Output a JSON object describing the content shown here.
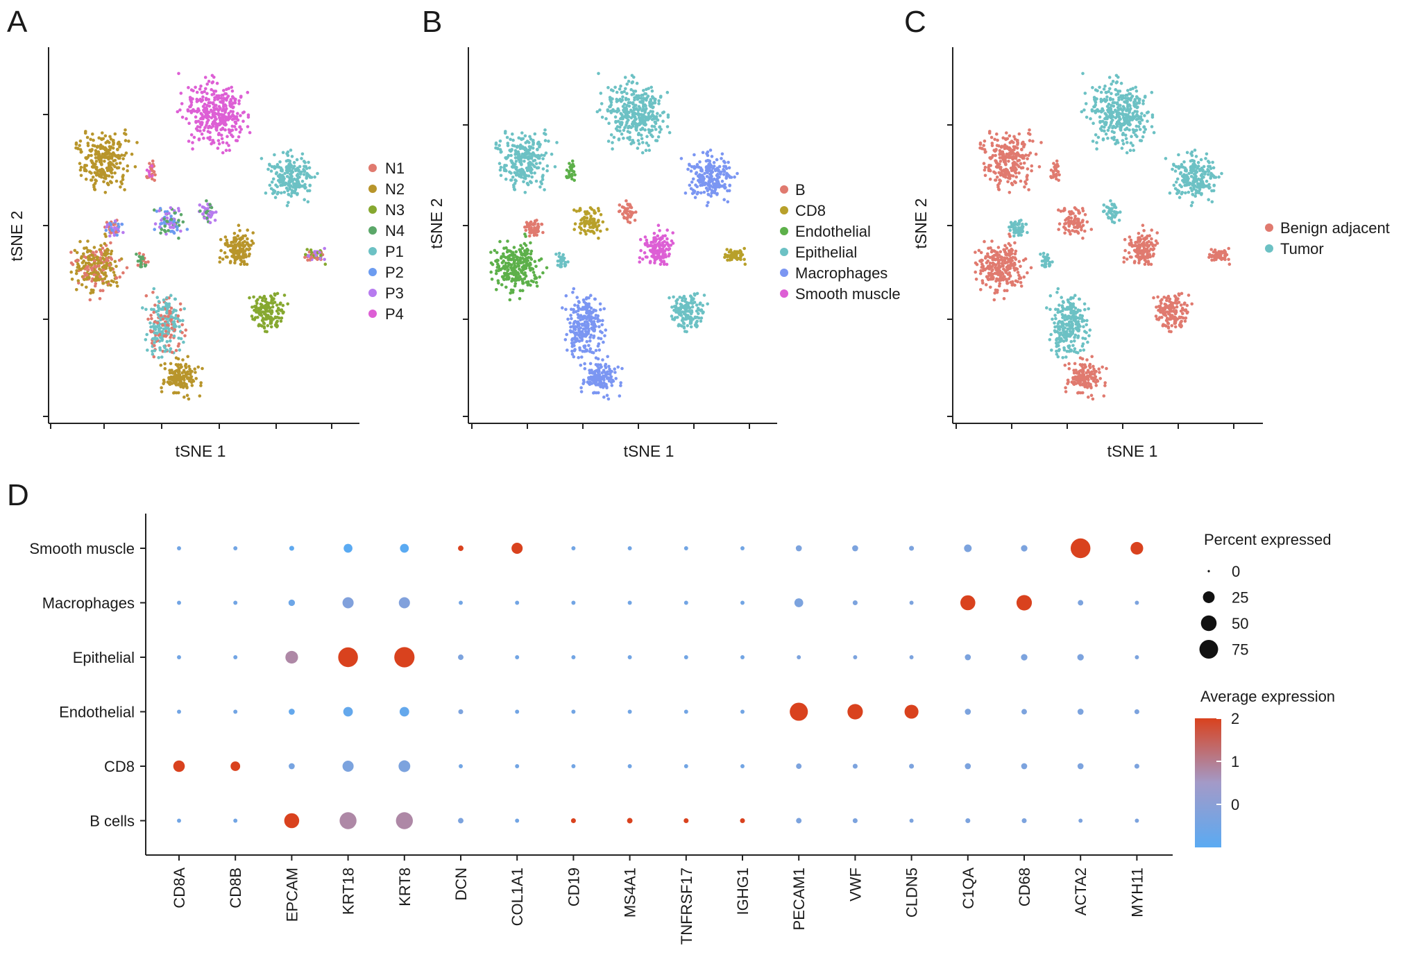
{
  "chart_data": [
    {
      "panel": "A",
      "type": "scatter",
      "xlabel": "tSNE 1",
      "ylabel": "tSNE 2",
      "legend": [
        "N1",
        "N2",
        "N3",
        "N4",
        "P1",
        "P2",
        "P3",
        "P4"
      ],
      "colors": [
        "#e07a6f",
        "#b8952b",
        "#86a830",
        "#5ba769",
        "#6cc1c4",
        "#6c9cf0",
        "#b77bef",
        "#dd5fd5"
      ]
    },
    {
      "panel": "B",
      "type": "scatter",
      "xlabel": "tSNE 1",
      "ylabel": "tSNE 2",
      "legend": [
        "B",
        "CD8",
        "Endothelial",
        "Epithelial",
        "Macrophages",
        "Smooth muscle"
      ],
      "colors": [
        "#e07a6f",
        "#b8a02a",
        "#5db04a",
        "#6cc1c4",
        "#7b96f2",
        "#dd5fd5"
      ]
    },
    {
      "panel": "C",
      "type": "scatter",
      "xlabel": "tSNE 1",
      "ylabel": "tSNE 2",
      "legend": [
        "Benign adjacent",
        "Tumor"
      ],
      "colors": [
        "#e07a6f",
        "#6cc1c4"
      ]
    },
    {
      "panel": "D",
      "type": "dotplot",
      "genes": [
        "CD8A",
        "CD8B",
        "EPCAM",
        "KRT18",
        "KRT8",
        "DCN",
        "COL1A1",
        "CD19",
        "MS4A1",
        "TNFRSF17",
        "IGHG1",
        "PECAM1",
        "VWF",
        "CLDN5",
        "C1QA",
        "CD68",
        "ACTA2",
        "MYH11"
      ],
      "cell_types": [
        "Smooth muscle",
        "Macrophages",
        "Epithelial",
        "Endothelial",
        "CD8",
        "B cells"
      ],
      "percent_expressed": [
        [
          1,
          1,
          2,
          12,
          12,
          3,
          22,
          1,
          1,
          1,
          1,
          4,
          4,
          2,
          8,
          5,
          85,
          30
        ],
        [
          1,
          1,
          5,
          22,
          22,
          1,
          1,
          1,
          1,
          1,
          1,
          12,
          2,
          1,
          45,
          48,
          3,
          1
        ],
        [
          1,
          1,
          30,
          85,
          90,
          3,
          1,
          1,
          1,
          1,
          1,
          1,
          1,
          1,
          4,
          5,
          5,
          1
        ],
        [
          1,
          1,
          4,
          15,
          15,
          2,
          1,
          1,
          1,
          1,
          1,
          70,
          48,
          38,
          4,
          3,
          4,
          2
        ],
        [
          24,
          15,
          4,
          22,
          25,
          1,
          1,
          1,
          1,
          1,
          1,
          3,
          2,
          2,
          4,
          4,
          4,
          2
        ],
        [
          1,
          1,
          45,
          60,
          60,
          3,
          1,
          2,
          3,
          2,
          2,
          3,
          2,
          1,
          2,
          2,
          1,
          1
        ]
      ],
      "average_expression": [
        [
          -0.5,
          -0.5,
          -0.9,
          -1.0,
          -1.0,
          2.0,
          2.0,
          -0.5,
          -0.5,
          -0.5,
          -0.5,
          -0.3,
          -0.3,
          -0.3,
          -0.3,
          -0.3,
          2.0,
          2.0
        ],
        [
          -0.5,
          -0.5,
          -0.6,
          -0.2,
          -0.2,
          -0.5,
          -0.5,
          -0.5,
          -0.5,
          -0.5,
          -0.5,
          -0.3,
          -0.3,
          -0.3,
          2.0,
          2.0,
          -0.3,
          -0.3
        ],
        [
          -0.5,
          -0.5,
          0.8,
          2.0,
          2.0,
          -0.3,
          -0.5,
          -0.5,
          -0.5,
          -0.5,
          -0.5,
          -0.3,
          -0.3,
          -0.3,
          -0.3,
          -0.3,
          -0.3,
          -0.3
        ],
        [
          -0.5,
          -0.5,
          -0.8,
          -0.8,
          -0.8,
          -0.3,
          -0.5,
          -0.5,
          -0.5,
          -0.5,
          -0.5,
          2.0,
          2.0,
          2.0,
          -0.3,
          -0.3,
          -0.3,
          -0.3
        ],
        [
          2.0,
          2.0,
          -0.4,
          -0.3,
          -0.3,
          -0.5,
          -0.5,
          -0.5,
          -0.5,
          -0.5,
          -0.5,
          -0.3,
          -0.3,
          -0.3,
          -0.3,
          -0.3,
          -0.3,
          -0.3
        ],
        [
          -0.5,
          -0.5,
          2.0,
          0.8,
          0.8,
          -0.3,
          -0.5,
          2.0,
          2.0,
          2.0,
          2.0,
          -0.3,
          -0.3,
          -0.3,
          -0.3,
          -0.3,
          -0.3,
          -0.3
        ]
      ],
      "size_legend_title": "Percent expressed",
      "size_legend": [
        "0",
        "25",
        "50",
        "75"
      ],
      "size_legend_values": [
        0,
        25,
        50,
        75
      ],
      "color_legend_title": "Average expression",
      "color_legend_ticks": [
        "2",
        "1",
        "0"
      ],
      "color_legend_values": [
        2,
        1,
        0
      ],
      "color_range": [
        -1,
        2
      ],
      "color_low": "#5aaaf2",
      "color_high": "#d9421e"
    }
  ],
  "panel_labels": [
    "A",
    "B",
    "C",
    "D"
  ]
}
